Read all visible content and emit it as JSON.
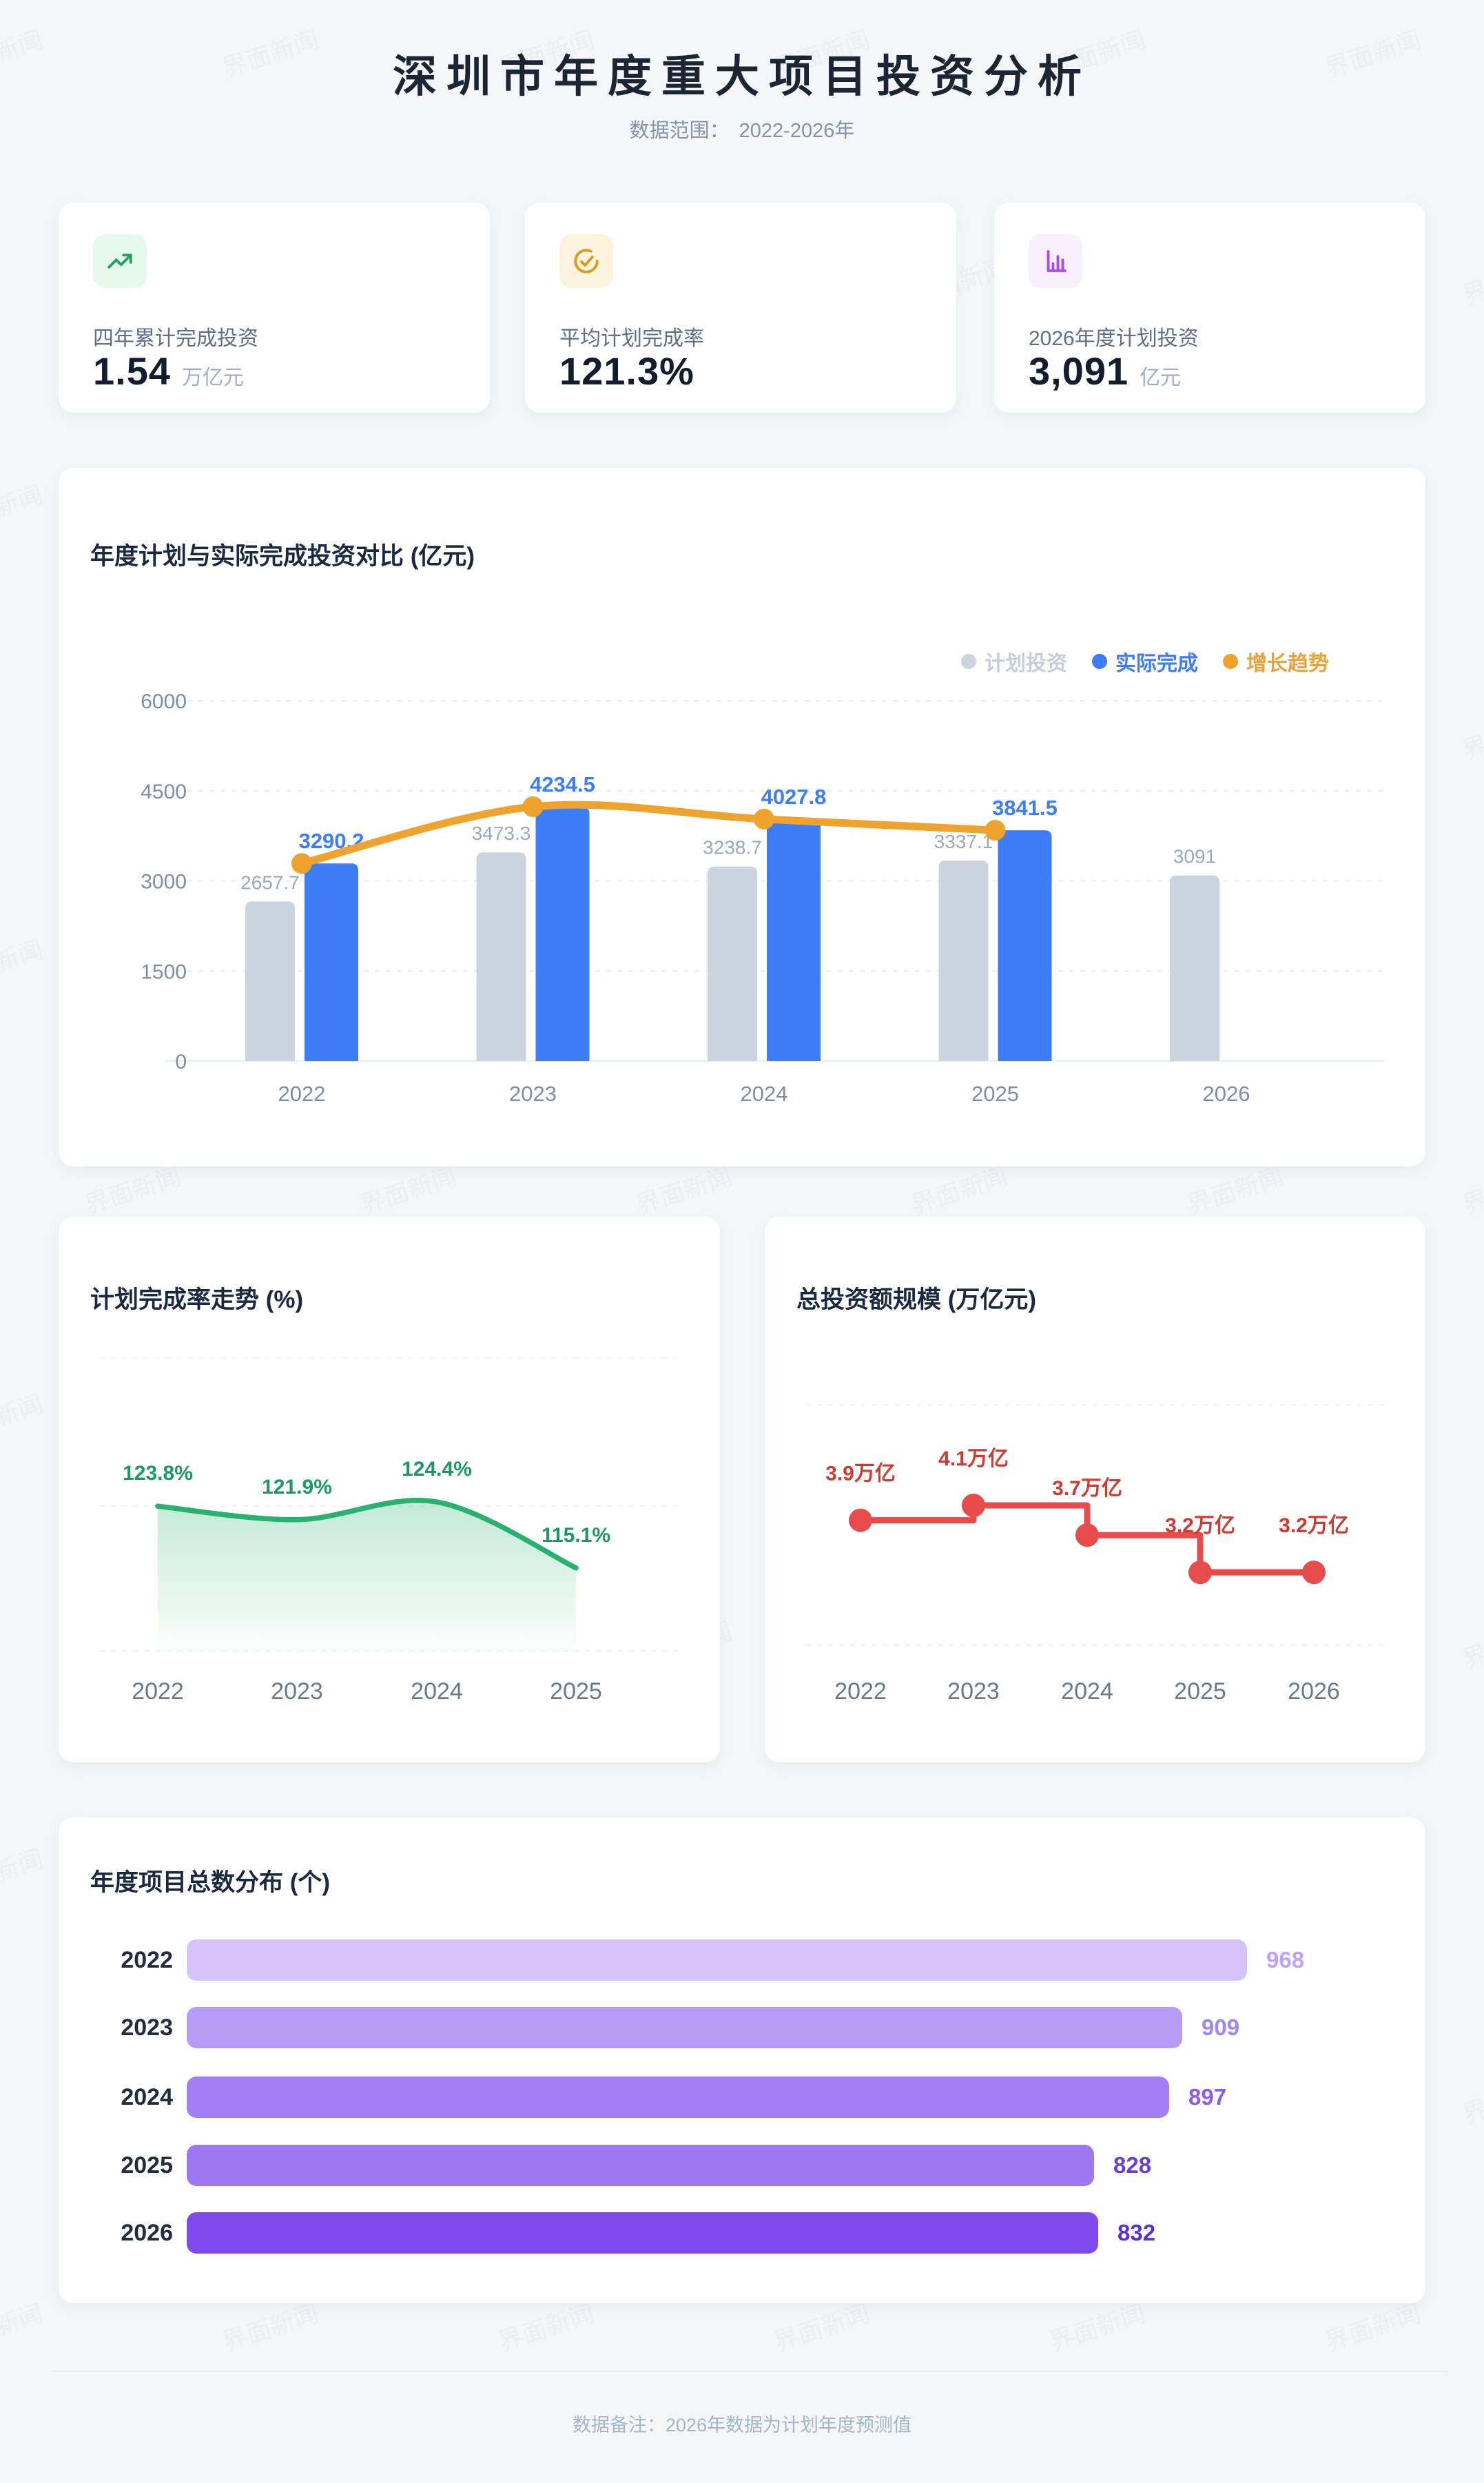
{
  "page": {
    "title": "深圳市年度重大项目投资分析",
    "subtitle_label": "数据范围：",
    "subtitle_value": "2022-2026年",
    "footer": "数据备注：2026年数据为计划年度预测值",
    "watermark": "界面新闻"
  },
  "stats": [
    {
      "icon": "trend-up-icon",
      "label": "四年累计完成投资",
      "value": "1.54",
      "unit": "万亿元",
      "accent": "#1ea45c",
      "accent_bg": "#e6f7ec"
    },
    {
      "icon": "check-circle-icon",
      "label": "平均计划完成率",
      "value": "121.3%",
      "unit": "",
      "accent": "#dd9a1f",
      "accent_bg": "#fbf3dd"
    },
    {
      "icon": "bar-chart-icon",
      "label": "2026年度计划投资",
      "value": "3,091",
      "unit": "亿元",
      "accent": "#a64df0",
      "accent_bg": "#f8eefc"
    }
  ],
  "chart_data": [
    {
      "id": "plan-vs-actual",
      "type": "bar",
      "title": "年度计划与实际完成投资对比 (亿元)",
      "categories": [
        "2022",
        "2023",
        "2024",
        "2025",
        "2026"
      ],
      "series": [
        {
          "name": "计划投资",
          "type": "bar",
          "color": "#ccd5df",
          "text_color": "#c5cfdb",
          "values": [
            2657.7,
            3473.3,
            3238.7,
            3337.1,
            3091
          ]
        },
        {
          "name": "实际完成",
          "type": "bar",
          "color": "#3d7ef8",
          "text_color": "#3d7ef8",
          "values": [
            3290.2,
            4234.5,
            4027.8,
            3841.5,
            null
          ]
        },
        {
          "name": "增长趋势",
          "type": "line",
          "color": "#f0a22e",
          "text_color": "#e9a33b",
          "values": [
            3290.2,
            4234.5,
            4027.8,
            3841.5,
            null
          ]
        }
      ],
      "y_ticks": [
        0,
        1500,
        3000,
        4500,
        6000
      ],
      "ylim": [
        0,
        6000
      ],
      "grid": "dashed",
      "legend_position": "top-right"
    },
    {
      "id": "completion-rate",
      "type": "area",
      "title": "计划完成率走势 (%)",
      "categories": [
        "2022",
        "2023",
        "2024",
        "2025"
      ],
      "values": [
        123.8,
        121.9,
        124.4,
        115.1
      ],
      "labels": [
        "123.8%",
        "121.9%",
        "124.4%",
        "115.1%"
      ],
      "color": "#29b170",
      "label_color": "#1a9a62",
      "grid": "dashed"
    },
    {
      "id": "total-investment-scale",
      "type": "line",
      "subtype": "step-after",
      "title": "总投资额规模 (万亿元)",
      "categories": [
        "2022",
        "2023",
        "2024",
        "2025",
        "2026"
      ],
      "values": [
        3.9,
        4.1,
        3.7,
        3.2,
        3.2
      ],
      "labels": [
        "3.9万亿",
        "4.1万亿",
        "3.7万亿",
        "3.2万亿",
        "3.2万亿"
      ],
      "color": "#e64c4c",
      "label_color": "#cf3a31",
      "grid": "dashed"
    },
    {
      "id": "project-count",
      "type": "bar",
      "orientation": "horizontal",
      "title": "年度项目总数分布 (个)",
      "categories": [
        "2022",
        "2023",
        "2024",
        "2025",
        "2026"
      ],
      "values": [
        968,
        909,
        897,
        828,
        832
      ],
      "bar_colors": [
        "#d6c2fa",
        "#b79cf7",
        "#a47ff3",
        "#9c79f2",
        "#8049ee"
      ],
      "label_colors": [
        "#c0a2f8",
        "#a387f0",
        "#8a5cf0",
        "#6b3fd6",
        "#5c2fd0"
      ],
      "xlim": [
        0,
        1130
      ]
    }
  ]
}
